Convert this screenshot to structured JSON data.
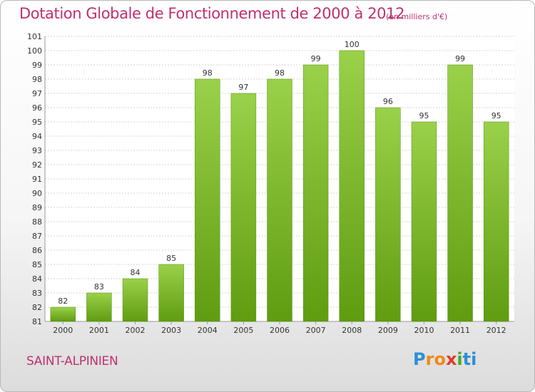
{
  "chart_data": {
    "type": "bar",
    "title": "Dotation Globale de Fonctionnement de 2000 à 2012",
    "units_note": "(en milliers d'€)",
    "categories": [
      "2000",
      "2001",
      "2002",
      "2003",
      "2004",
      "2005",
      "2006",
      "2007",
      "2008",
      "2009",
      "2010",
      "2011",
      "2012"
    ],
    "values": [
      82,
      83,
      84,
      85,
      98,
      97,
      98,
      99,
      100,
      96,
      95,
      99,
      95
    ],
    "ylim": [
      81,
      101
    ],
    "yticks": [
      "81",
      "82",
      "83",
      "84",
      "85",
      "86",
      "87",
      "88",
      "89",
      "90",
      "91",
      "92",
      "93",
      "94",
      "95",
      "96",
      "97",
      "98",
      "99",
      "100",
      "101"
    ],
    "grid": true,
    "bar_color": "#7cc21e"
  },
  "footer": {
    "place_name": "SAINT-ALPINIEN",
    "logo_text": "Proxiti",
    "logo_colors": [
      "#2e8fd6",
      "#f08a16",
      "#f08a16",
      "#e23a2a",
      "#49a82a",
      "#2e8fd6",
      "#2e8fd6"
    ]
  }
}
